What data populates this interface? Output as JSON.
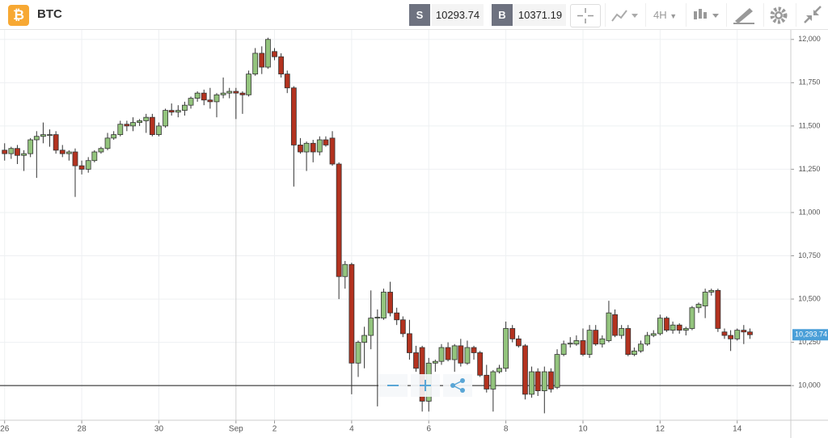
{
  "toolbar": {
    "icon": "₿",
    "symbol": "BTC",
    "sell_label": "S",
    "sell_price": "10293.74",
    "buy_label": "B",
    "buy_price": "10371.19",
    "interval": "4H"
  },
  "chart_data": {
    "type": "candlestick",
    "x": [
      26,
      26.17,
      26.33,
      26.5,
      26.67,
      26.83,
      27,
      27.17,
      27.33,
      27.5,
      27.67,
      27.83,
      28,
      28.17,
      28.33,
      28.5,
      28.67,
      28.83,
      29,
      29.17,
      29.33,
      29.5,
      29.67,
      29.83,
      30,
      30.17,
      30.33,
      30.5,
      30.67,
      30.83,
      31,
      31.17,
      31.33,
      31.5,
      31.67,
      31.83,
      32,
      32.17,
      32.33,
      32.5,
      32.67,
      32.83,
      33,
      33.17,
      33.33,
      33.5,
      33.67,
      33.83,
      34,
      34.17,
      34.33,
      34.5,
      34.67,
      34.83,
      35,
      35.17,
      35.33,
      35.5,
      35.67,
      35.83,
      36,
      36.17,
      36.33,
      36.5,
      36.67,
      36.83,
      37,
      37.17,
      37.33,
      37.5,
      37.67,
      37.83,
      38,
      38.17,
      38.33,
      38.5,
      38.67,
      38.83,
      39,
      39.17,
      39.33,
      39.5,
      39.67,
      39.83,
      40,
      40.17,
      40.33,
      40.5,
      40.67,
      40.83,
      41,
      41.17,
      41.33,
      41.5,
      41.67,
      41.83,
      42,
      42.17,
      42.33,
      42.5,
      42.67,
      42.83,
      43,
      43.17,
      43.33,
      43.5,
      43.67,
      43.83,
      44,
      44.17,
      44.33,
      44.5,
      44.67,
      44.83,
      45,
      45.17,
      45.33
    ],
    "ohlc": [
      [
        11360,
        11400,
        11300,
        11340
      ],
      [
        11340,
        11380,
        11310,
        11370
      ],
      [
        11370,
        11390,
        11280,
        11330
      ],
      [
        11330,
        11360,
        11240,
        11340
      ],
      [
        11340,
        11430,
        11320,
        11420
      ],
      [
        11420,
        11470,
        11200,
        11440
      ],
      [
        11440,
        11520,
        11400,
        11450
      ],
      [
        11450,
        11480,
        11380,
        11450
      ],
      [
        11450,
        11470,
        11340,
        11360
      ],
      [
        11360,
        11390,
        11320,
        11340
      ],
      [
        11340,
        11360,
        11300,
        11350
      ],
      [
        11350,
        11370,
        11090,
        11270
      ],
      [
        11270,
        11300,
        11220,
        11250
      ],
      [
        11250,
        11320,
        11230,
        11300
      ],
      [
        11300,
        11360,
        11290,
        11350
      ],
      [
        11350,
        11380,
        11340,
        11370
      ],
      [
        11370,
        11460,
        11360,
        11430
      ],
      [
        11430,
        11470,
        11420,
        11450
      ],
      [
        11450,
        11530,
        11440,
        11510
      ],
      [
        11510,
        11530,
        11470,
        11500
      ],
      [
        11500,
        11550,
        11470,
        11520
      ],
      [
        11520,
        11540,
        11500,
        11530
      ],
      [
        11530,
        11570,
        11460,
        11550
      ],
      [
        11550,
        11570,
        11440,
        11450
      ],
      [
        11450,
        11520,
        11440,
        11500
      ],
      [
        11500,
        11600,
        11490,
        11590
      ],
      [
        11590,
        11630,
        11560,
        11580
      ],
      [
        11580,
        11620,
        11550,
        11590
      ],
      [
        11590,
        11640,
        11560,
        11620
      ],
      [
        11620,
        11670,
        11600,
        11660
      ],
      [
        11660,
        11700,
        11640,
        11690
      ],
      [
        11690,
        11710,
        11620,
        11650
      ],
      [
        11650,
        11720,
        11600,
        11640
      ],
      [
        11640,
        11690,
        11550,
        11680
      ],
      [
        11680,
        11780,
        11660,
        11690
      ],
      [
        11690,
        11720,
        11660,
        11700
      ],
      [
        11700,
        11720,
        11540,
        11690
      ],
      [
        11690,
        11700,
        11570,
        11680
      ],
      [
        11680,
        11820,
        11670,
        11800
      ],
      [
        11800,
        11950,
        11790,
        11920
      ],
      [
        11920,
        11960,
        11800,
        11840
      ],
      [
        11840,
        12010,
        11830,
        12000
      ],
      [
        11930,
        11950,
        11880,
        11900
      ],
      [
        11900,
        11920,
        11780,
        11800
      ],
      [
        11800,
        11820,
        11690,
        11720
      ],
      [
        11720,
        11730,
        11150,
        11390
      ],
      [
        11390,
        11430,
        11340,
        11350
      ],
      [
        11350,
        11410,
        11240,
        11400
      ],
      [
        11400,
        11420,
        11290,
        11350
      ],
      [
        11350,
        11440,
        11330,
        11420
      ],
      [
        11420,
        11440,
        11380,
        11390
      ],
      [
        11430,
        11470,
        11270,
        11280
      ],
      [
        11280,
        11290,
        10500,
        10630
      ],
      [
        10630,
        10720,
        10560,
        10700
      ],
      [
        10700,
        10710,
        9950,
        10130
      ],
      [
        10130,
        10260,
        10050,
        10250
      ],
      [
        10250,
        10340,
        10100,
        10290
      ],
      [
        10290,
        10550,
        10210,
        10390
      ],
      [
        10390,
        10440,
        9880,
        10395
      ],
      [
        10390,
        10560,
        10380,
        10540
      ],
      [
        10540,
        10600,
        10400,
        10420
      ],
      [
        10420,
        10450,
        10350,
        10380
      ],
      [
        10380,
        10400,
        10280,
        10300
      ],
      [
        10300,
        10380,
        10150,
        10190
      ],
      [
        10190,
        10230,
        10080,
        10100
      ],
      [
        10220,
        10230,
        9850,
        9910
      ],
      [
        9910,
        10160,
        9850,
        10130
      ],
      [
        10130,
        10150,
        10080,
        10140
      ],
      [
        10140,
        10240,
        10120,
        10220
      ],
      [
        10220,
        10250,
        10140,
        10150
      ],
      [
        10150,
        10240,
        10080,
        10230
      ],
      [
        10230,
        10270,
        10110,
        10130
      ],
      [
        10130,
        10260,
        10120,
        10220
      ],
      [
        10220,
        10230,
        10150,
        10190
      ],
      [
        10190,
        10200,
        10050,
        10060
      ],
      [
        10060,
        10120,
        9960,
        9980
      ],
      [
        9980,
        10090,
        9850,
        10080
      ],
      [
        10080,
        10120,
        10070,
        10100
      ],
      [
        10100,
        10370,
        10080,
        10330
      ],
      [
        10330,
        10350,
        10250,
        10270
      ],
      [
        10270,
        10290,
        10220,
        10230
      ],
      [
        10230,
        10240,
        9920,
        9950
      ],
      [
        9950,
        10110,
        9930,
        10080
      ],
      [
        10080,
        10100,
        9940,
        9970
      ],
      [
        9970,
        10110,
        9840,
        10080
      ],
      [
        10080,
        10100,
        9960,
        9980
      ],
      [
        9990,
        10210,
        9980,
        10180
      ],
      [
        10180,
        10260,
        10170,
        10240
      ],
      [
        10240,
        10280,
        10220,
        10245
      ],
      [
        10240,
        10290,
        10230,
        10260
      ],
      [
        10260,
        10330,
        10170,
        10180
      ],
      [
        10180,
        10350,
        10160,
        10320
      ],
      [
        10320,
        10350,
        10230,
        10240
      ],
      [
        10240,
        10290,
        10220,
        10270
      ],
      [
        10260,
        10490,
        10250,
        10420
      ],
      [
        10410,
        10440,
        10280,
        10290
      ],
      [
        10290,
        10350,
        10270,
        10330
      ],
      [
        10330,
        10350,
        10170,
        10180
      ],
      [
        10180,
        10220,
        10170,
        10200
      ],
      [
        10200,
        10260,
        10190,
        10240
      ],
      [
        10240,
        10310,
        10230,
        10290
      ],
      [
        10290,
        10320,
        10280,
        10300
      ],
      [
        10300,
        10410,
        10290,
        10390
      ],
      [
        10390,
        10400,
        10310,
        10320
      ],
      [
        10320,
        10370,
        10300,
        10350
      ],
      [
        10350,
        10360,
        10300,
        10320
      ],
      [
        10320,
        10340,
        10290,
        10330
      ],
      [
        10330,
        10460,
        10320,
        10450
      ],
      [
        10450,
        10480,
        10420,
        10470
      ],
      [
        10460,
        10560,
        10390,
        10540
      ],
      [
        10540,
        10560,
        10520,
        10550
      ],
      [
        10550,
        10560,
        10310,
        10330
      ],
      [
        10310,
        10330,
        10270,
        10290
      ],
      [
        10290,
        10320,
        10200,
        10270
      ],
      [
        10270,
        10330,
        10260,
        10320
      ],
      [
        10320,
        10350,
        10240,
        10310
      ],
      [
        10310,
        10330,
        10270,
        10294
      ]
    ],
    "up_color": "#93c47d",
    "down_color": "#b3321f",
    "xlim": [
      25.88,
      46.39
    ],
    "xticks": [
      26,
      28,
      30,
      {
        "value": 32,
        "label": "Sep"
      },
      {
        "value": 33,
        "label": "2"
      },
      {
        "value": 35,
        "label": "4"
      },
      {
        "value": 37,
        "label": "6"
      },
      {
        "value": 39,
        "label": "8"
      },
      {
        "value": 41,
        "label": "10"
      },
      {
        "value": 43,
        "label": "12"
      },
      {
        "value": 45,
        "label": "14"
      }
    ],
    "ylim": [
      9800,
      12055
    ],
    "yticks": [
      {
        "value": 10000,
        "label": "10,000"
      },
      {
        "value": 10250,
        "label": "10,250"
      },
      {
        "value": 10500,
        "label": "10,500"
      },
      {
        "value": 10750,
        "label": "10,750"
      },
      {
        "value": 11000,
        "label": "11,000"
      },
      {
        "value": 11250,
        "label": "11,250"
      },
      {
        "value": 11500,
        "label": "11,500"
      },
      {
        "value": 11750,
        "label": "11,750"
      },
      {
        "value": 12000,
        "label": "12,000"
      }
    ],
    "grid": true,
    "horizontal_line": 10000,
    "last_price": {
      "value": 10293.74,
      "label": "10,293.74"
    }
  }
}
